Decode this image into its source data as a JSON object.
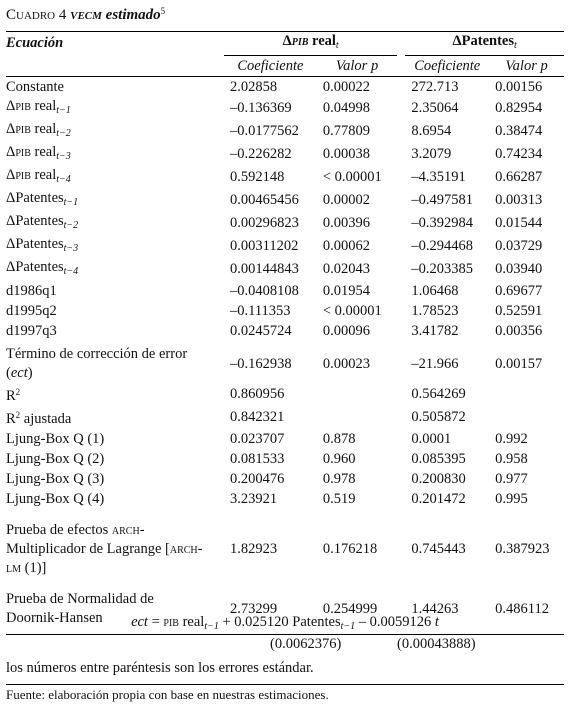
{
  "title": [
    {
      "sc": "Cuadro 4"
    },
    {
      "bi": " "
    },
    {
      "bsc": "vecm"
    },
    {
      "bi": " estimado"
    },
    {
      "sup": "5"
    }
  ],
  "header": {
    "col0": [
      {
        "bi": "Ecuación"
      }
    ],
    "groups": [
      [
        {
          "b": "Δ"
        },
        {
          "bsc": "pib"
        },
        {
          "b": " real"
        },
        {
          "sub": "t"
        }
      ],
      [
        {
          "b": "ΔPatentes"
        },
        {
          "sub": "t"
        }
      ]
    ],
    "sub": [
      "Coeficiente",
      "Valor p",
      "Coeficiente",
      "Valor p"
    ]
  },
  "rows": [
    {
      "label": [
        {
          "t": "Constante"
        }
      ],
      "cells": [
        "2.02858",
        "0.00022",
        "272.713",
        "0.00156"
      ]
    },
    {
      "label": [
        {
          "t": "Δ"
        },
        {
          "sc": "pib"
        },
        {
          "t": " real"
        },
        {
          "sub": "t−1"
        }
      ],
      "cells": [
        "–0.136369",
        "0.04998",
        "2.35064",
        "0.82954"
      ]
    },
    {
      "label": [
        {
          "t": "Δ"
        },
        {
          "sc": "pib"
        },
        {
          "t": " real"
        },
        {
          "sub": "t−2"
        }
      ],
      "cells": [
        "–0.0177562",
        "0.77809",
        "8.6954",
        "0.38474"
      ]
    },
    {
      "label": [
        {
          "t": "Δ"
        },
        {
          "sc": "pib"
        },
        {
          "t": " real"
        },
        {
          "sub": "t−3"
        }
      ],
      "cells": [
        "–0.226282",
        "0.00038",
        "3.2079",
        "0.74234"
      ]
    },
    {
      "label": [
        {
          "t": "Δ"
        },
        {
          "sc": "pib"
        },
        {
          "t": " real"
        },
        {
          "sub": "t−4"
        }
      ],
      "cells": [
        "0.592148",
        "< 0.00001",
        "–4.35191",
        "0.66287"
      ]
    },
    {
      "label": [
        {
          "t": "ΔPatentes"
        },
        {
          "sub": "t−1"
        }
      ],
      "cells": [
        "0.00465456",
        "0.00002",
        "–0.497581",
        "0.00313"
      ]
    },
    {
      "label": [
        {
          "t": "ΔPatentes"
        },
        {
          "sub": "t−2"
        }
      ],
      "cells": [
        "0.00296823",
        "0.00396",
        "–0.392984",
        "0.01544"
      ]
    },
    {
      "label": [
        {
          "t": "ΔPatentes"
        },
        {
          "sub": "t−3"
        }
      ],
      "cells": [
        "0.00311202",
        "0.00062",
        "–0.294468",
        "0.03729"
      ]
    },
    {
      "label": [
        {
          "t": "ΔPatentes"
        },
        {
          "sub": "t−4"
        }
      ],
      "cells": [
        "0.00144843",
        "0.02043",
        "–0.203385",
        "0.03940"
      ]
    },
    {
      "label": [
        {
          "t": "d1986q1"
        }
      ],
      "cells": [
        "–0.0408108",
        "0.01954",
        "1.06468",
        "0.69677"
      ]
    },
    {
      "label": [
        {
          "t": "d1995q2"
        }
      ],
      "cells": [
        "–0.111353",
        "< 0.00001",
        "1.78523",
        "0.52591"
      ]
    },
    {
      "label": [
        {
          "t": "d1997q3"
        }
      ],
      "cells": [
        "0.0245724",
        "0.00096",
        "3.41782",
        "0.00356"
      ]
    },
    {
      "label": [
        {
          "t": "Término de corrección de error ("
        },
        {
          "i": "ect"
        },
        {
          "t": ")"
        }
      ],
      "cells": [
        "–0.162938",
        "0.00023",
        "–21.966",
        "0.00157"
      ]
    },
    {
      "label": [
        {
          "t": "R"
        },
        {
          "sup": "2"
        }
      ],
      "cells": [
        "0.860956",
        null,
        "0.564269",
        null
      ]
    },
    {
      "label": [
        {
          "t": "R"
        },
        {
          "sup": "2"
        },
        {
          "t": " ajustada"
        }
      ],
      "cells": [
        "0.842321",
        null,
        "0.505872",
        null
      ]
    },
    {
      "label": [
        {
          "t": "Ljung-Box Q (1)"
        }
      ],
      "cells": [
        "0.023707",
        "0.878",
        "0.0001",
        "0.992"
      ]
    },
    {
      "label": [
        {
          "t": "Ljung-Box Q (2)"
        }
      ],
      "cells": [
        "0.081533",
        "0.960",
        "0.085395",
        "0.958"
      ]
    },
    {
      "label": [
        {
          "t": "Ljung-Box Q (3)"
        }
      ],
      "cells": [
        "0.200476",
        "0.978",
        "0.200830",
        "0.977"
      ]
    },
    {
      "label": [
        {
          "t": "Ljung-Box Q (4)"
        }
      ],
      "cells": [
        "3.23921",
        "0.519",
        "0.201472",
        "0.995"
      ]
    },
    {
      "label": [
        {
          "t": "Prueba de efectos "
        },
        {
          "sc": "arch"
        },
        {
          "t": "-Multiplicador de Lagrange ["
        },
        {
          "sc": "arch-lm"
        },
        {
          "t": " (1)]"
        }
      ],
      "cells": [
        "1.82923",
        "0.176218",
        "0.745443",
        "0.387923"
      ]
    },
    {
      "label": [
        {
          "t": "Prueba de Normalidad de Doornik-Hansen"
        }
      ],
      "cells": [
        "2.73299",
        "0.254999",
        "1.44263",
        "0.486112"
      ]
    }
  ],
  "equation": {
    "line": [
      {
        "i": "ect"
      },
      {
        "t": " = "
      },
      {
        "sc": "pib"
      },
      {
        "t": " real"
      },
      {
        "sub": "t−1"
      },
      {
        "t": " + 0.025120 Patentes"
      },
      {
        "sub": "t−1"
      },
      {
        "t": " – 0.0059126 "
      },
      {
        "i": "t"
      }
    ],
    "se": [
      "(0.0062376)",
      "(0.00043888)"
    ]
  },
  "note": "los números entre paréntesis son los errores estándar.",
  "source": "Fuente: elaboración propia con base en nuestras estimaciones."
}
